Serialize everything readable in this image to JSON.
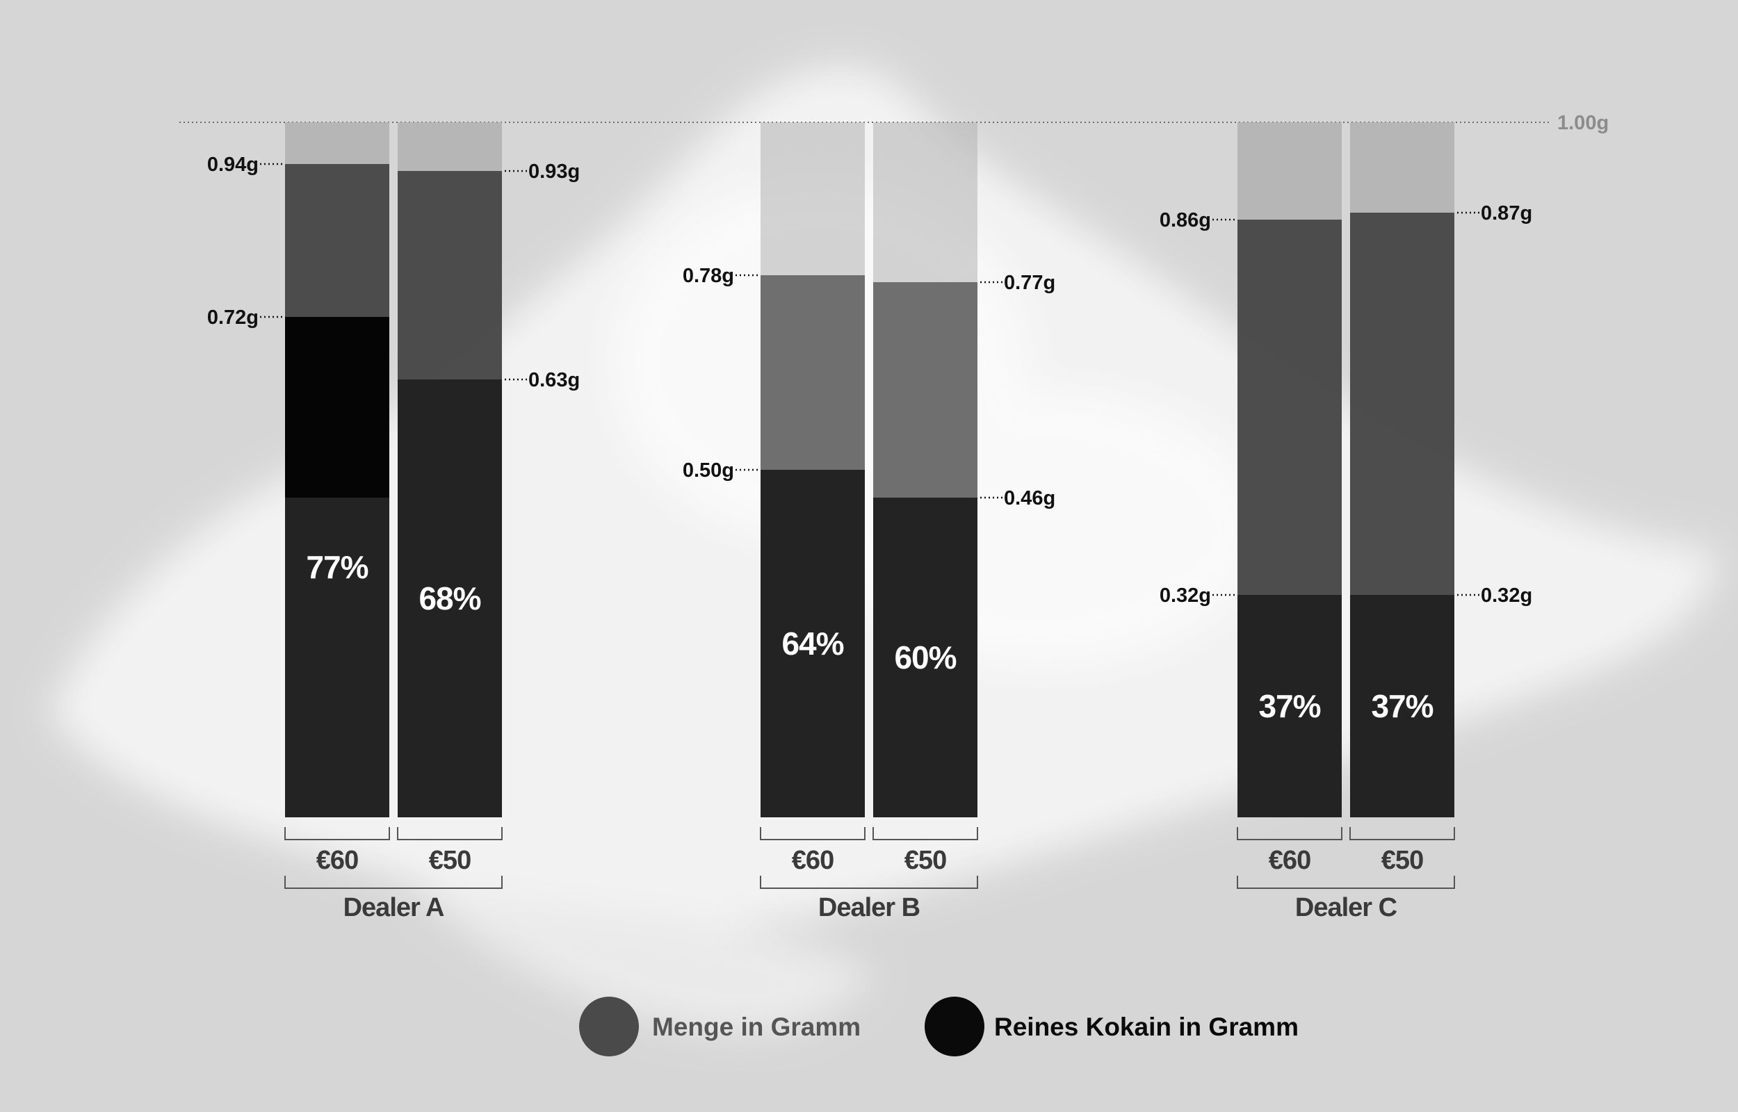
{
  "chart_data": {
    "type": "bar",
    "stacked": true,
    "y_unit": "g",
    "ylim": [
      0,
      1.0
    ],
    "reference_line": {
      "value": 1.0,
      "label": "1.00g"
    },
    "groups": [
      {
        "name": "Dealer A",
        "bars": [
          {
            "price": "€60",
            "menge": 0.94,
            "rein": 0.72,
            "menge_label": "0.94g",
            "rein_label": "0.72g",
            "percent": "77%"
          },
          {
            "price": "€50",
            "menge": 0.93,
            "rein": 0.63,
            "menge_label": "0.93g",
            "rein_label": "0.63g",
            "percent": "68%"
          }
        ]
      },
      {
        "name": "Dealer B",
        "bars": [
          {
            "price": "€60",
            "menge": 0.78,
            "rein": 0.5,
            "menge_label": "0.78g",
            "rein_label": "0.50g",
            "percent": "64%"
          },
          {
            "price": "€50",
            "menge": 0.77,
            "rein": 0.46,
            "menge_label": "0.77g",
            "rein_label": "0.46g",
            "percent": "60%"
          }
        ]
      },
      {
        "name": "Dealer C",
        "bars": [
          {
            "price": "€60",
            "menge": 0.86,
            "rein": 0.32,
            "menge_label": "0.86g",
            "rein_label": "0.32g",
            "percent": "37%"
          },
          {
            "price": "€50",
            "menge": 0.87,
            "rein": 0.32,
            "menge_label": "0.87g",
            "rein_label": "0.32g",
            "percent": "37%"
          }
        ]
      }
    ],
    "legend": [
      {
        "key": "menge",
        "label": "Menge in Gramm",
        "color": "#4a4a4a",
        "text_color": "#555555"
      },
      {
        "key": "rein",
        "label": "Reines Kokain in Gramm",
        "color": "#0a0a0a",
        "text_color": "#0a0a0a"
      }
    ],
    "colors": {
      "background": "#d6d6d6",
      "remainder": "#b3b3b3",
      "menge_dark": "#474747",
      "menge_light": "#6a6a6a",
      "rein": "#232323",
      "rein_dark": "#050505",
      "reference_label": "#8c8c8c"
    }
  }
}
